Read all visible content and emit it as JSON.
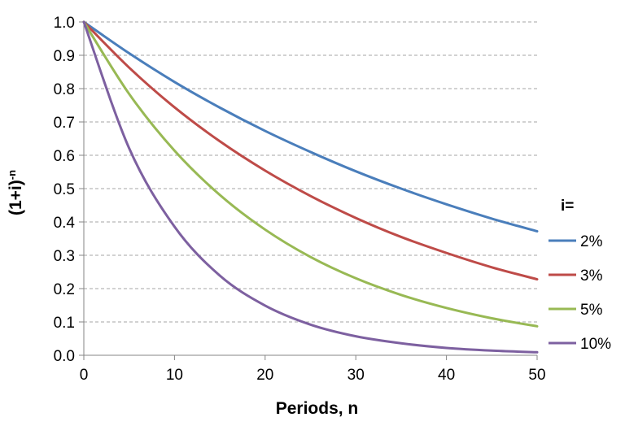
{
  "chart_data": {
    "type": "line",
    "xlabel": "Periods, n",
    "ylabel": "(1+i)",
    "ylabel_superscript": "-n",
    "xlim": [
      0,
      50
    ],
    "ylim": [
      0,
      1.0
    ],
    "xticks": [
      "0",
      "10",
      "20",
      "30",
      "40",
      "50"
    ],
    "yticks": [
      "0.0",
      "0.1",
      "0.2",
      "0.3",
      "0.4",
      "0.5",
      "0.6",
      "0.7",
      "0.8",
      "0.9",
      "1.0"
    ],
    "grid": "horizontal dashed",
    "legend": {
      "title": "i=",
      "placement": "right"
    },
    "series": [
      {
        "name": "2%",
        "color": "#4a7ebb",
        "x": [
          0,
          5,
          10,
          15,
          20,
          25,
          30,
          35,
          40,
          45,
          50
        ],
        "y": [
          1.0,
          0.906,
          0.82,
          0.743,
          0.673,
          0.61,
          0.552,
          0.5,
          0.453,
          0.41,
          0.372
        ]
      },
      {
        "name": "3%",
        "color": "#be4b48",
        "x": [
          0,
          5,
          10,
          15,
          20,
          25,
          30,
          35,
          40,
          45,
          50
        ],
        "y": [
          1.0,
          0.863,
          0.744,
          0.642,
          0.554,
          0.478,
          0.412,
          0.355,
          0.307,
          0.264,
          0.228
        ]
      },
      {
        "name": "5%",
        "color": "#98b954",
        "x": [
          0,
          5,
          10,
          15,
          20,
          25,
          30,
          35,
          40,
          45,
          50
        ],
        "y": [
          1.0,
          0.784,
          0.614,
          0.481,
          0.377,
          0.295,
          0.231,
          0.181,
          0.142,
          0.111,
          0.087
        ]
      },
      {
        "name": "10%",
        "color": "#7d60a0",
        "x": [
          0,
          5,
          10,
          15,
          20,
          25,
          30,
          35,
          40,
          45,
          50
        ],
        "y": [
          1.0,
          0.621,
          0.386,
          0.239,
          0.149,
          0.092,
          0.057,
          0.036,
          0.022,
          0.014,
          0.009
        ]
      }
    ]
  }
}
